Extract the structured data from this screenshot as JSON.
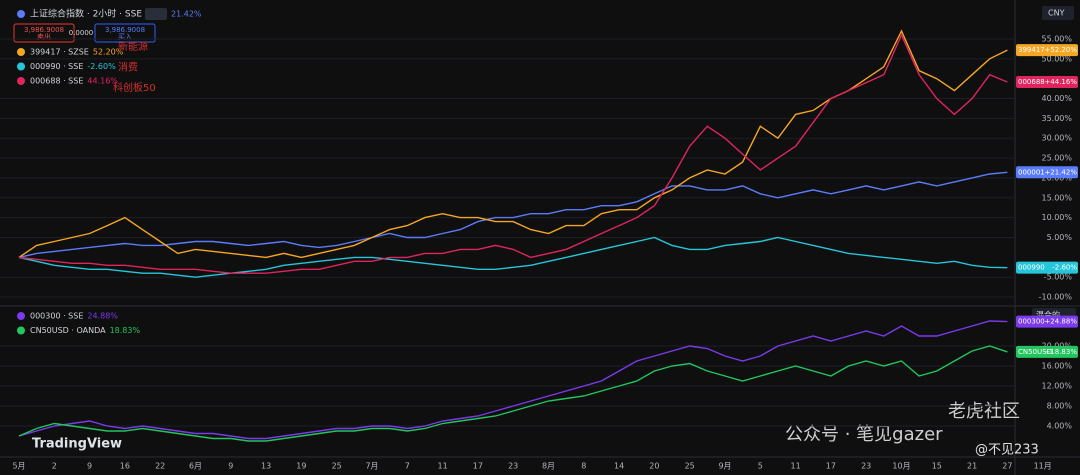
{
  "header": {
    "symbol": "上证综合指数 · 2小时 · SSE",
    "change": "21.42%",
    "sell_price": "3,986.9008",
    "sell": "卖出",
    "spread": "0.0000",
    "buy_price": "3,986.9008",
    "buy": "买入"
  },
  "chart_data": [
    {
      "type": "line",
      "currency": "CNY",
      "grid": true,
      "ylim": [
        -12,
        62.8
      ],
      "yticks": [
        {
          "value": 55,
          "label": "55.00%"
        },
        {
          "value": 50,
          "label": "50.00%"
        },
        {
          "value": 40,
          "label": "40.00%"
        },
        {
          "value": 35,
          "label": "35.00%"
        },
        {
          "value": 30,
          "label": "30.00%"
        },
        {
          "value": 25,
          "label": "25.00%"
        },
        {
          "value": 20,
          "label": "20.00%"
        },
        {
          "value": 15,
          "label": "15.00%"
        },
        {
          "value": 10,
          "label": "10.00%"
        },
        {
          "value": 5,
          "label": "5.00%"
        },
        {
          "value": -5,
          "label": "-5.00%"
        },
        {
          "value": -10,
          "label": "-10.00%"
        }
      ],
      "annotations": [
        "新能源",
        "消费",
        "科创板50"
      ],
      "series": [
        {
          "symbol": "000001",
          "tag_value": "+21.42%",
          "color": "#5b7cfa",
          "values": [
            0,
            1,
            1.5,
            2,
            2.5,
            3,
            3.5,
            3,
            3,
            3.5,
            4,
            4,
            3.5,
            3,
            3.5,
            4,
            3,
            2.5,
            3,
            4,
            5,
            6,
            5,
            5,
            6,
            7,
            9,
            10,
            10,
            11,
            11,
            12,
            12,
            13,
            13,
            14,
            16,
            18,
            18,
            17,
            17,
            18,
            16,
            15,
            16,
            17,
            16,
            17,
            18,
            17,
            18,
            19,
            18,
            19,
            20,
            21,
            21.42,
            null,
            null,
            null
          ]
        },
        {
          "name": "399417 · SZSE",
          "symbol": "399417",
          "legend_value": "52.20%",
          "tag_value": "+52.20%",
          "color": "#f5a623",
          "values": [
            0,
            3,
            4,
            5,
            6,
            8,
            10,
            7,
            4,
            1,
            2,
            1.5,
            1,
            0.5,
            0,
            1,
            0,
            1,
            2,
            3,
            5,
            7,
            8,
            10,
            11,
            10,
            10,
            9,
            9,
            7,
            6,
            8,
            8,
            11,
            12,
            12,
            15,
            17,
            20,
            22,
            21,
            24,
            33,
            30,
            36,
            37,
            40,
            42,
            45,
            48,
            57,
            47,
            45,
            42,
            46,
            50,
            52.2,
            null,
            null,
            null
          ]
        },
        {
          "name": "000990 · SSE",
          "symbol": "000990",
          "legend_value": "-2.60%",
          "tag_value": "-2.60%",
          "color": "#26c6da",
          "values": [
            0,
            -1,
            -2,
            -2.5,
            -3,
            -3,
            -3.5,
            -4,
            -4,
            -4.5,
            -5,
            -4.5,
            -4,
            -3.5,
            -3,
            -2,
            -1.5,
            -1,
            -0.5,
            0,
            0,
            -0.5,
            -1,
            -1.5,
            -2,
            -2.5,
            -3,
            -3,
            -2.5,
            -2,
            -1,
            0,
            1,
            2,
            3,
            4,
            5,
            3,
            2,
            2,
            3,
            3.5,
            4,
            5,
            4,
            3,
            2,
            1,
            0.5,
            0,
            -0.5,
            -1,
            -1.5,
            -1,
            -2,
            -2.5,
            -2.6,
            null,
            null,
            null
          ]
        },
        {
          "name": "000688 · SSE",
          "symbol": "000688",
          "legend_value": "44.16%",
          "tag_value": "+44.16%",
          "color": "#e0245e",
          "values": [
            0,
            -0.5,
            -1,
            -1.5,
            -1.5,
            -2,
            -2,
            -2.5,
            -3,
            -3,
            -3,
            -3.5,
            -4,
            -4,
            -4,
            -3.5,
            -3,
            -3,
            -2,
            -1,
            -1,
            0,
            0,
            1,
            1,
            2,
            2,
            3,
            2,
            0,
            1,
            2,
            4,
            6,
            8,
            10,
            13,
            20,
            28,
            33,
            30,
            26,
            22,
            25,
            28,
            34,
            40,
            42,
            44,
            46,
            56,
            46,
            40,
            36,
            40,
            46,
            44.16,
            null,
            null,
            null
          ]
        }
      ]
    },
    {
      "type": "line",
      "scale_mode": "混合的",
      "grid": true,
      "categories": [
        "5月",
        null,
        "2",
        null,
        "9",
        null,
        "16",
        null,
        "22",
        null,
        "6月",
        null,
        "9",
        null,
        "13",
        null,
        "19",
        null,
        "25",
        null,
        "7月",
        null,
        "7",
        null,
        "11",
        null,
        "17",
        null,
        "23",
        null,
        "8月",
        null,
        "8",
        null,
        "14",
        null,
        "20",
        null,
        "25",
        null,
        "9月",
        null,
        "5",
        null,
        "11",
        null,
        "17",
        null,
        "23",
        null,
        "10月",
        null,
        "15",
        null,
        "21",
        null,
        "27",
        null,
        "11月",
        null
      ],
      "ylim": [
        -1.8,
        27.6
      ],
      "yticks": [
        {
          "value": 20,
          "label": "20.00%"
        },
        {
          "value": 16,
          "label": "16.00%"
        },
        {
          "value": 12,
          "label": "12.00%"
        },
        {
          "value": 8,
          "label": "8.00%"
        },
        {
          "value": 4,
          "label": "4.00%"
        }
      ],
      "series": [
        {
          "name": "000300 · SSE",
          "symbol": "000300",
          "legend_value": "24.88%",
          "tag_value": "+24.88%",
          "color": "#7c3aed",
          "values": [
            2,
            3,
            4,
            4.5,
            5,
            4,
            3.5,
            4,
            3.5,
            3,
            2.5,
            2.5,
            2,
            1.5,
            1.5,
            2,
            2.5,
            3,
            3.5,
            3.5,
            4,
            4,
            3.5,
            4,
            5,
            5.5,
            6,
            7,
            8,
            9,
            10,
            11,
            12,
            13,
            15,
            17,
            18,
            19,
            20,
            19.5,
            18,
            17,
            18,
            20,
            21,
            22,
            21,
            22,
            23,
            22,
            24,
            22,
            22,
            23,
            24,
            25,
            24.88,
            null,
            null,
            null
          ]
        },
        {
          "name": "CN50USD · OANDA",
          "symbol": "CN50USD",
          "legend_value": "18.83%",
          "tag_value": "+18.83%",
          "color": "#22c55e",
          "values": [
            2,
            3.5,
            4.5,
            4,
            3.5,
            3,
            3,
            3.5,
            3,
            2.5,
            2,
            1.5,
            1.5,
            1,
            1,
            1.5,
            2,
            2.5,
            3,
            3,
            3.5,
            3.5,
            3,
            3.5,
            4.5,
            5,
            5.5,
            6,
            7,
            8,
            9,
            9.5,
            10,
            11,
            12,
            13,
            15,
            16,
            16.5,
            15,
            14,
            13,
            14,
            15,
            16,
            15,
            14,
            16,
            17,
            16,
            17,
            14,
            15,
            17,
            19,
            20,
            18.83,
            null,
            null,
            null
          ]
        }
      ]
    }
  ],
  "branding": "TradingView",
  "watermarks": [
    "公众号 · 笔见gazer",
    "老虎社区",
    "@不见233"
  ]
}
